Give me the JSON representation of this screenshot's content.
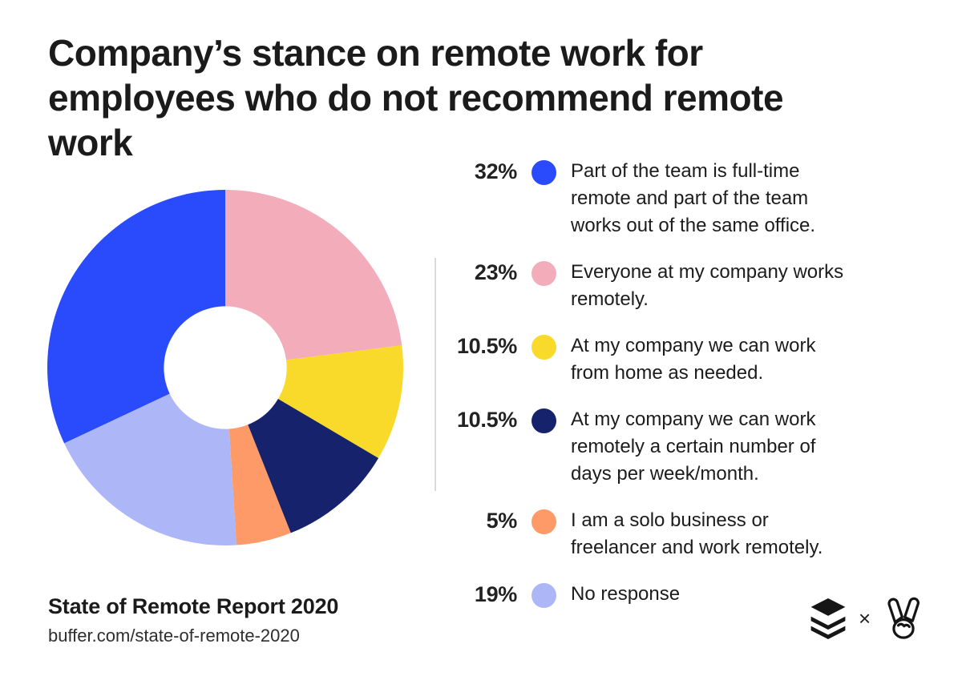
{
  "chart_data": {
    "type": "pie",
    "subtype": "donut",
    "title": "Company’s stance on remote work for employees who do not recommend remote work",
    "legend_position": "right",
    "inner_radius_ratio": 0.345,
    "rotation_deg": 244.8,
    "clockwise": true,
    "segments": [
      {
        "pct_label": "32%",
        "value": 32,
        "color": "#2a4bfc",
        "label": "Part of the team is full-time remote and part of the team works out of the same office."
      },
      {
        "pct_label": "23%",
        "value": 23,
        "color": "#f2acba",
        "label": "Everyone at my company works remotely."
      },
      {
        "pct_label": "10.5%",
        "value": 10.5,
        "color": "#f9da2b",
        "label": "At my company we can work from home as needed."
      },
      {
        "pct_label": "10.5%",
        "value": 10.5,
        "color": "#16226b",
        "label": "At my company we can work remotely a certain number of days per week/month."
      },
      {
        "pct_label": "5%",
        "value": 5,
        "color": "#fd9a68",
        "label": "I am a solo business or freelancer and work remotely."
      },
      {
        "pct_label": "19%",
        "value": 19,
        "color": "#adb7f8",
        "label": "No response"
      }
    ]
  },
  "footer": {
    "report_title": "State of Remote Report 2020",
    "url": "buffer.com/state-of-remote-2020",
    "separator": "×"
  },
  "colors": {
    "background": "#ffffff",
    "text": "#1b1b1b",
    "divider": "#d9d9d9",
    "logo": "#161616"
  }
}
